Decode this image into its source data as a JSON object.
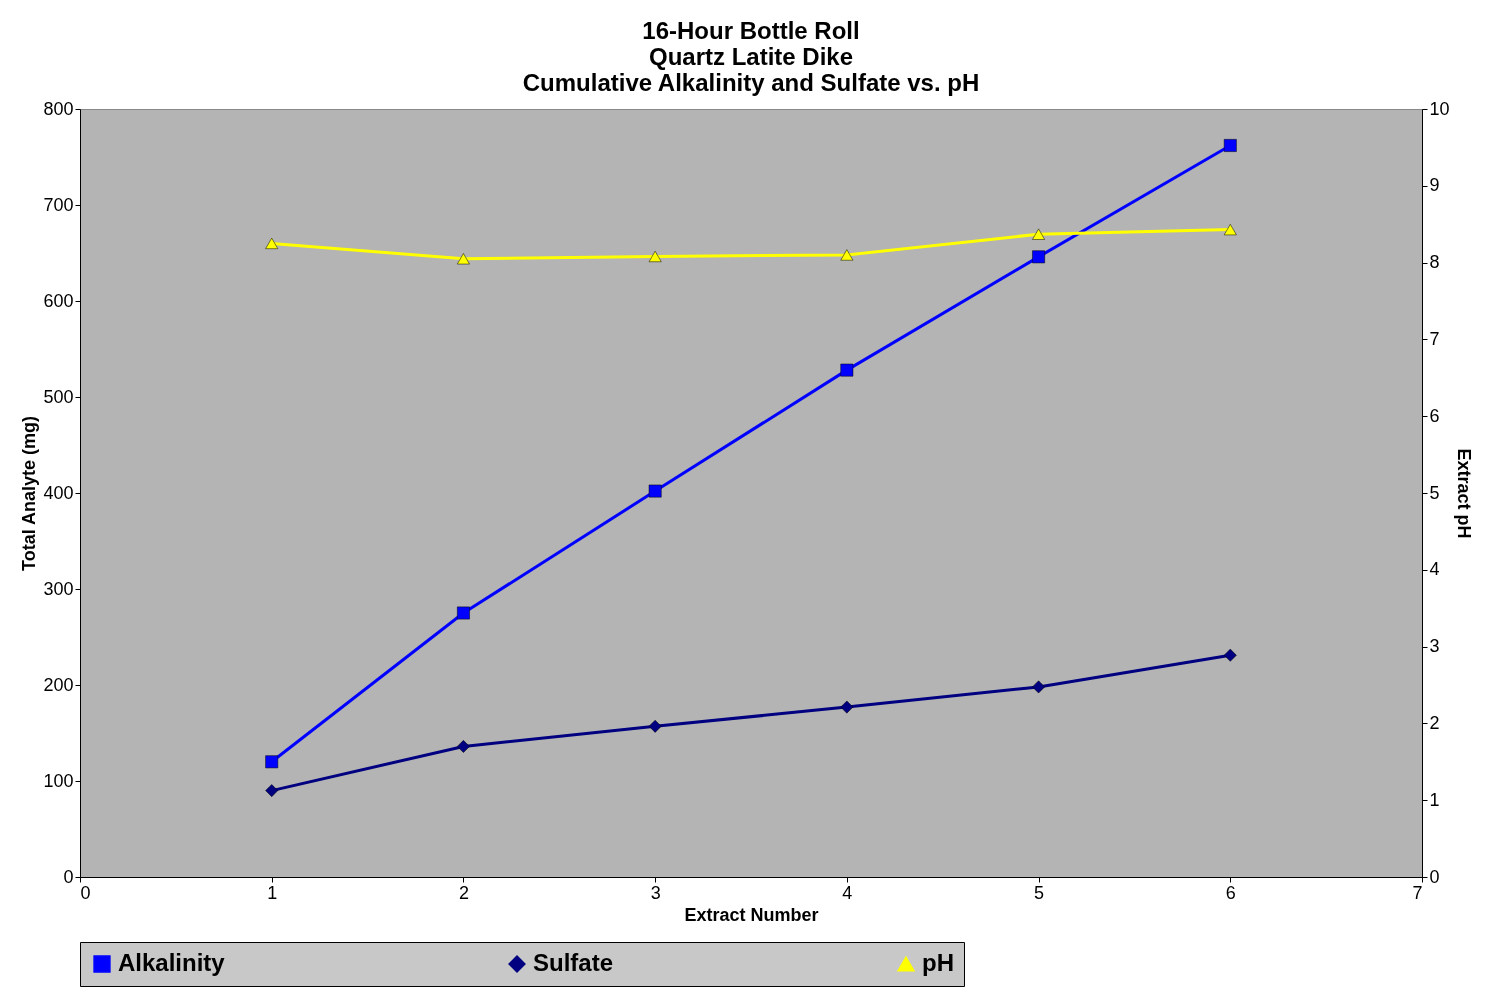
{
  "chart_data": {
    "type": "line",
    "title": [
      "16-Hour Bottle Roll",
      "Quartz Latite Dike",
      "Cumulative Alkalinity and Sulfate vs. pH"
    ],
    "xlabel": "Extract Number",
    "ylabel": "Total Analyte (mg)",
    "y2label": "Extract pH",
    "x": [
      1,
      2,
      3,
      4,
      5,
      6
    ],
    "xlim": [
      0,
      7
    ],
    "xticks": [
      0,
      1,
      2,
      3,
      4,
      5,
      6,
      7
    ],
    "ylim": [
      0,
      800
    ],
    "yticks": [
      0,
      100,
      200,
      300,
      400,
      500,
      600,
      700,
      800
    ],
    "y2lim": [
      0,
      10
    ],
    "y2ticks": [
      0,
      1,
      2,
      3,
      4,
      5,
      6,
      7,
      8,
      9,
      10
    ],
    "series": [
      {
        "name": "Alkalinity",
        "color": "#0000ff",
        "marker": "square",
        "values": [
          120,
          275,
          402,
          528,
          646,
          762
        ]
      },
      {
        "name": "Sulfate",
        "color": "#000080",
        "marker": "diamond",
        "values": [
          90,
          136,
          157,
          177,
          198,
          231
        ]
      },
      {
        "name": "pH",
        "color": "#ffff00",
        "marker": "triangle",
        "axis": "y2",
        "values": [
          8.25,
          8.05,
          8.08,
          8.1,
          8.37,
          8.43
        ]
      }
    ],
    "grid": false,
    "legend": "bottom",
    "line_style": "solid"
  }
}
